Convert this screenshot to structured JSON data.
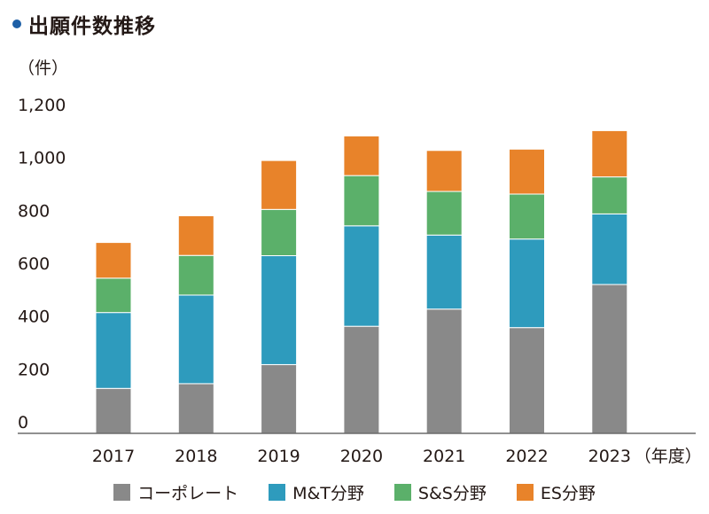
{
  "title": "出願件数推移",
  "chart_data": {
    "type": "bar",
    "stacked": true,
    "title": "出願件数推移",
    "ylabel": "（件）",
    "xlabel": "（年度）",
    "ylim": [
      0,
      1200
    ],
    "yticks": [
      0,
      200,
      400,
      600,
      800,
      1000,
      1200
    ],
    "ytick_labels": [
      "0",
      "200",
      "400",
      "600",
      "800",
      "1,000",
      "1,200"
    ],
    "categories": [
      "2017",
      "2018",
      "2019",
      "2020",
      "2021",
      "2022",
      "2023"
    ],
    "series": [
      {
        "name": "コーポレート",
        "color": "#898989",
        "values": [
          170,
          188,
          260,
          405,
          470,
          400,
          563
        ]
      },
      {
        "name": "M&T分野",
        "color": "#2e9bbd",
        "values": [
          287,
          335,
          412,
          380,
          280,
          335,
          267
        ]
      },
      {
        "name": "S&S分野",
        "color": "#5bb06a",
        "values": [
          130,
          150,
          175,
          190,
          165,
          170,
          140
        ]
      },
      {
        "name": "ES分野",
        "color": "#e8832a",
        "values": [
          135,
          150,
          185,
          150,
          155,
          170,
          175
        ]
      }
    ],
    "legend_position": "bottom",
    "grid": false
  }
}
